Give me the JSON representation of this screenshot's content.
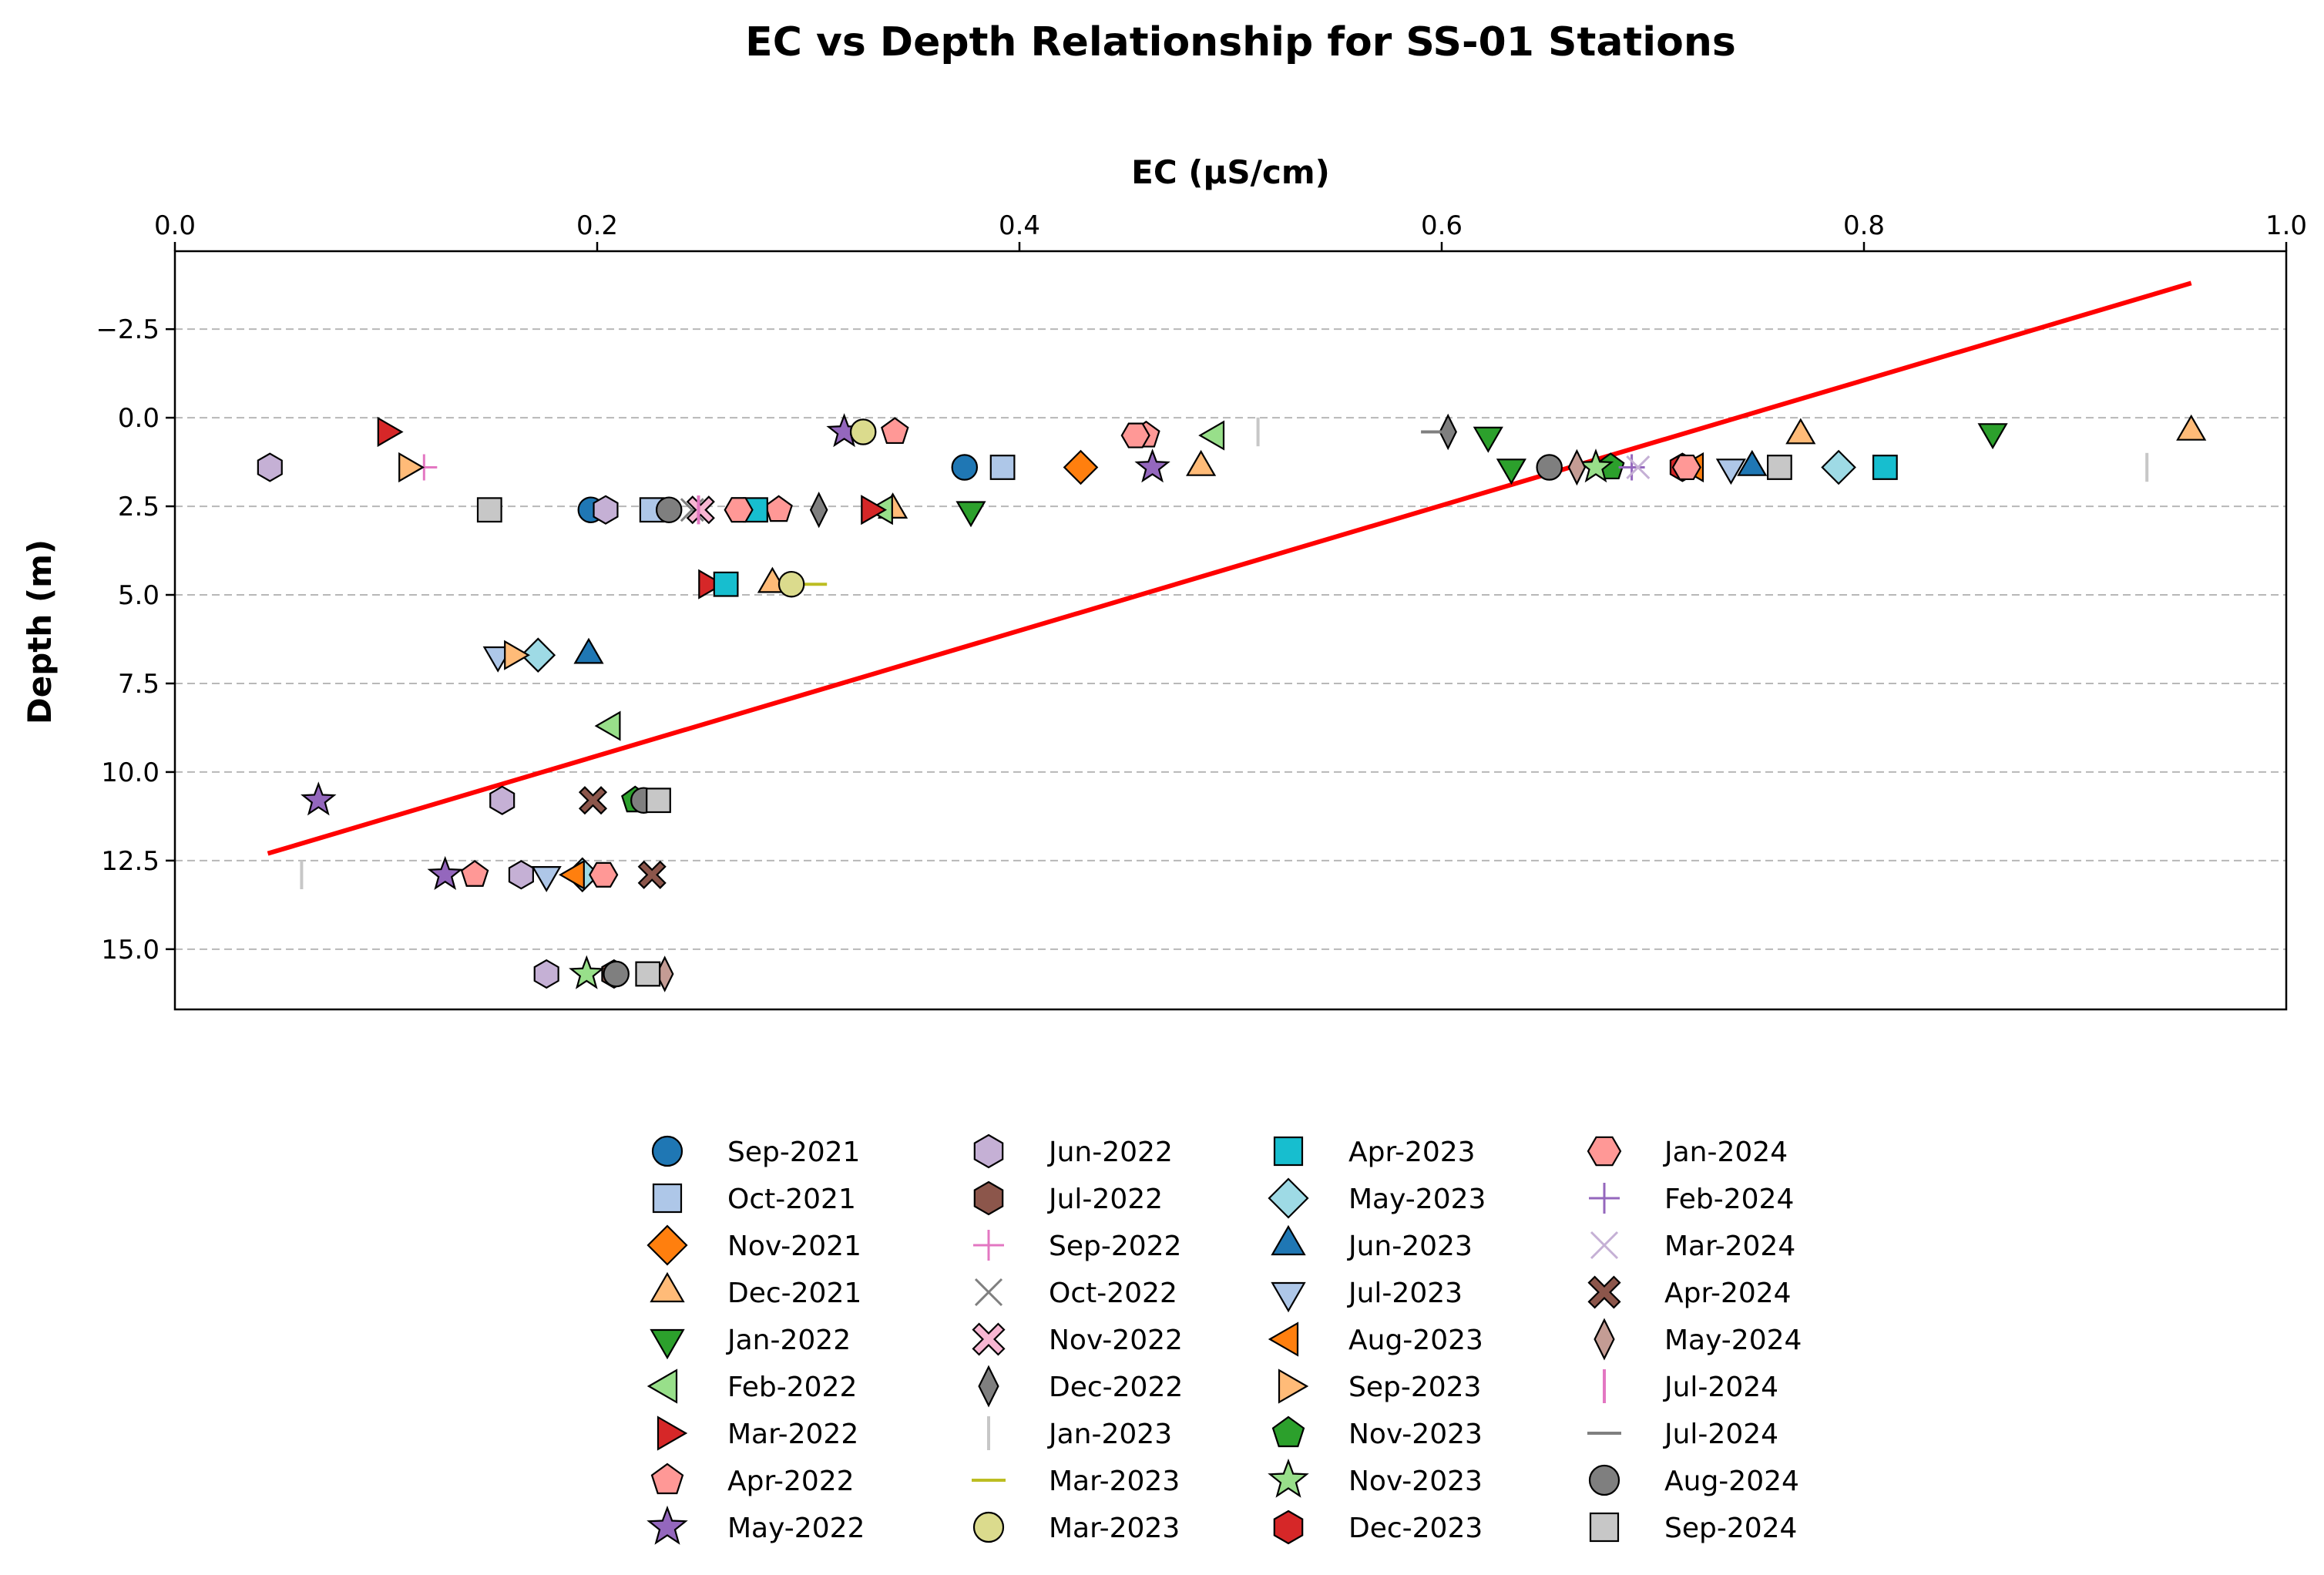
{
  "chart_data": {
    "type": "scatter",
    "title": "EC vs Depth Relationship for SS-01 Stations",
    "xlabel": "EC (μS/cm)",
    "ylabel": "Depth (m)",
    "xlim": [
      0.0,
      1.0
    ],
    "ylim": [
      16.7,
      -4.7
    ],
    "x_axis_position": "top",
    "y_inverted": true,
    "x_ticks": [
      "0.0",
      "0.2",
      "0.4",
      "0.6",
      "0.8",
      "1.0"
    ],
    "y_ticks": [
      "−2.5",
      "0.0",
      "2.5",
      "5.0",
      "7.5",
      "10.0",
      "12.5",
      "15.0"
    ],
    "grid": "horizontal dashed",
    "legend_position": "bottom-center",
    "trendline": {
      "color": "#ff0000",
      "x": [
        0.044,
        0.955
      ],
      "y": [
        12.3,
        -3.8
      ]
    },
    "series": [
      {
        "name": "Sep-2021",
        "marker": "circle",
        "color": "#1f77b4",
        "points": [
          [
            0.374,
            1.4
          ],
          [
            0.197,
            2.6
          ]
        ]
      },
      {
        "name": "Oct-2021",
        "marker": "square",
        "color": "#aec7e8",
        "points": [
          [
            0.392,
            1.4
          ],
          [
            0.226,
            2.6
          ]
        ]
      },
      {
        "name": "Nov-2021",
        "marker": "diamond",
        "color": "#ff7f0e",
        "points": [
          [
            0.429,
            1.4
          ]
        ]
      },
      {
        "name": "Dec-2021",
        "marker": "triangle-up",
        "color": "#ffbb78",
        "points": [
          [
            0.955,
            0.4
          ],
          [
            0.77,
            0.5
          ],
          [
            0.486,
            1.4
          ],
          [
            0.34,
            2.6
          ],
          [
            0.283,
            4.7
          ]
        ]
      },
      {
        "name": "Jan-2022",
        "marker": "triangle-down",
        "color": "#2ca02c",
        "points": [
          [
            0.861,
            0.4
          ],
          [
            0.622,
            0.5
          ],
          [
            0.633,
            1.4
          ],
          [
            0.377,
            2.6
          ]
        ]
      },
      {
        "name": "Feb-2022",
        "marker": "triangle-left",
        "color": "#98df8a",
        "points": [
          [
            0.493,
            0.5
          ],
          [
            0.336,
            2.6
          ],
          [
            0.207,
            8.7
          ]
        ]
      },
      {
        "name": "Mar-2022",
        "marker": "triangle-right",
        "color": "#d62728",
        "points": [
          [
            0.1,
            0.4
          ],
          [
            0.329,
            2.6
          ],
          [
            0.252,
            4.7
          ]
        ]
      },
      {
        "name": "Apr-2022",
        "marker": "pentagon",
        "color": "#ff9896",
        "points": [
          [
            0.341,
            0.4
          ],
          [
            0.46,
            0.5
          ],
          [
            0.286,
            2.6
          ],
          [
            0.142,
            12.9
          ]
        ]
      },
      {
        "name": "May-2022",
        "marker": "star",
        "color": "#9467bd",
        "points": [
          [
            0.317,
            0.4
          ],
          [
            0.463,
            1.4
          ],
          [
            0.068,
            10.8
          ],
          [
            0.128,
            12.9
          ]
        ]
      },
      {
        "name": "Jun-2022",
        "marker": "hexagon",
        "color": "#c5b0d5",
        "points": [
          [
            0.045,
            1.4
          ],
          [
            0.204,
            2.6
          ],
          [
            0.155,
            10.8
          ],
          [
            0.164,
            12.9
          ],
          [
            0.176,
            15.7
          ]
        ]
      },
      {
        "name": "Jul-2022",
        "marker": "hexagon",
        "color": "#8c564b",
        "points": [
          [
            0.208,
            15.7
          ]
        ]
      },
      {
        "name": "Sep-2022",
        "marker": "plus",
        "color": "#e377c2",
        "points": [
          [
            0.118,
            1.4
          ]
        ]
      },
      {
        "name": "Oct-2022",
        "marker": "x",
        "color": "#7f7f7f",
        "points": [
          [
            0.245,
            2.6
          ]
        ]
      },
      {
        "name": "Nov-2022",
        "marker": "x-filled",
        "color": "#f7b6d2",
        "points": [
          [
            0.249,
            2.6
          ]
        ]
      },
      {
        "name": "Dec-2022",
        "marker": "thin-diamond",
        "color": "#7f7f7f",
        "points": [
          [
            0.603,
            0.4
          ],
          [
            0.305,
            2.6
          ]
        ]
      },
      {
        "name": "Jan-2023",
        "marker": "vline",
        "color": "#c7c7c7",
        "points": [
          [
            0.513,
            0.4
          ],
          [
            0.934,
            1.4
          ],
          [
            0.06,
            12.9
          ]
        ]
      },
      {
        "name": "Mar-2023",
        "marker": "hline",
        "color": "#bcbd22",
        "points": [
          [
            0.302,
            4.7
          ]
        ]
      },
      {
        "name": "Mar-2023",
        "marker": "circle",
        "color": "#dbdb8d",
        "points": [
          [
            0.326,
            0.4
          ],
          [
            0.292,
            4.7
          ]
        ]
      },
      {
        "name": "Apr-2023",
        "marker": "square",
        "color": "#17becf",
        "points": [
          [
            0.81,
            1.4
          ],
          [
            0.275,
            2.6
          ],
          [
            0.261,
            4.7
          ]
        ]
      },
      {
        "name": "May-2023",
        "marker": "diamond",
        "color": "#9edae5",
        "points": [
          [
            0.788,
            1.4
          ],
          [
            0.172,
            6.7
          ],
          [
            0.193,
            12.9
          ]
        ]
      },
      {
        "name": "Jun-2023",
        "marker": "triangle-up",
        "color": "#1f77b4",
        "points": [
          [
            0.747,
            1.4
          ],
          [
            0.196,
            6.7
          ]
        ]
      },
      {
        "name": "Jul-2023",
        "marker": "triangle-down",
        "color": "#aec7e8",
        "points": [
          [
            0.737,
            1.4
          ],
          [
            0.153,
            6.7
          ],
          [
            0.176,
            12.9
          ]
        ]
      },
      {
        "name": "Aug-2023",
        "marker": "triangle-left",
        "color": "#ff7f0e",
        "points": [
          [
            0.72,
            1.4
          ],
          [
            0.19,
            12.9
          ]
        ]
      },
      {
        "name": "Sep-2023",
        "marker": "triangle-right",
        "color": "#ffbb78",
        "points": [
          [
            0.11,
            1.4
          ],
          [
            0.16,
            6.7
          ]
        ]
      },
      {
        "name": "Nov-2023",
        "marker": "pentagon",
        "color": "#2ca02c",
        "points": [
          [
            0.68,
            1.4
          ],
          [
            0.218,
            10.8
          ]
        ]
      },
      {
        "name": "Nov-2023",
        "marker": "star",
        "color": "#98df8a",
        "points": [
          [
            0.673,
            1.4
          ],
          [
            0.195,
            15.7
          ]
        ]
      },
      {
        "name": "Dec-2023",
        "marker": "hexagon",
        "color": "#d62728",
        "points": [
          [
            0.714,
            1.4
          ]
        ]
      },
      {
        "name": "Jan-2024",
        "marker": "octagon",
        "color": "#ff9896",
        "points": [
          [
            0.455,
            0.5
          ],
          [
            0.267,
            2.6
          ],
          [
            0.716,
            1.4
          ],
          [
            0.203,
            12.9
          ]
        ]
      },
      {
        "name": "Feb-2024",
        "marker": "plus",
        "color": "#9467bd",
        "points": [
          [
            0.69,
            1.4
          ]
        ]
      },
      {
        "name": "Mar-2024",
        "marker": "x",
        "color": "#c5b0d5",
        "points": [
          [
            0.693,
            1.4
          ]
        ]
      },
      {
        "name": "Apr-2024",
        "marker": "x-filled",
        "color": "#8c564b",
        "points": [
          [
            0.198,
            10.8
          ],
          [
            0.226,
            12.9
          ]
        ]
      },
      {
        "name": "May-2024",
        "marker": "thin-diamond",
        "color": "#c49c94",
        "points": [
          [
            0.664,
            1.4
          ],
          [
            0.232,
            15.7
          ]
        ]
      },
      {
        "name": "Jul-2024",
        "marker": "vline",
        "color": "#e377c2",
        "points": [
          [
            0.248,
            2.6
          ]
        ]
      },
      {
        "name": "Jul-2024",
        "marker": "hline",
        "color": "#7f7f7f",
        "points": [
          [
            0.597,
            0.4
          ]
        ]
      },
      {
        "name": "Aug-2024",
        "marker": "circle",
        "color": "#7f7f7f",
        "points": [
          [
            0.651,
            1.4
          ],
          [
            0.234,
            2.6
          ],
          [
            0.222,
            10.8
          ],
          [
            0.209,
            15.7
          ]
        ]
      },
      {
        "name": "Sep-2024",
        "marker": "square",
        "color": "#c7c7c7",
        "points": [
          [
            0.76,
            1.4
          ],
          [
            0.149,
            2.6
          ],
          [
            0.229,
            10.8
          ],
          [
            0.224,
            15.7
          ]
        ]
      }
    ]
  }
}
